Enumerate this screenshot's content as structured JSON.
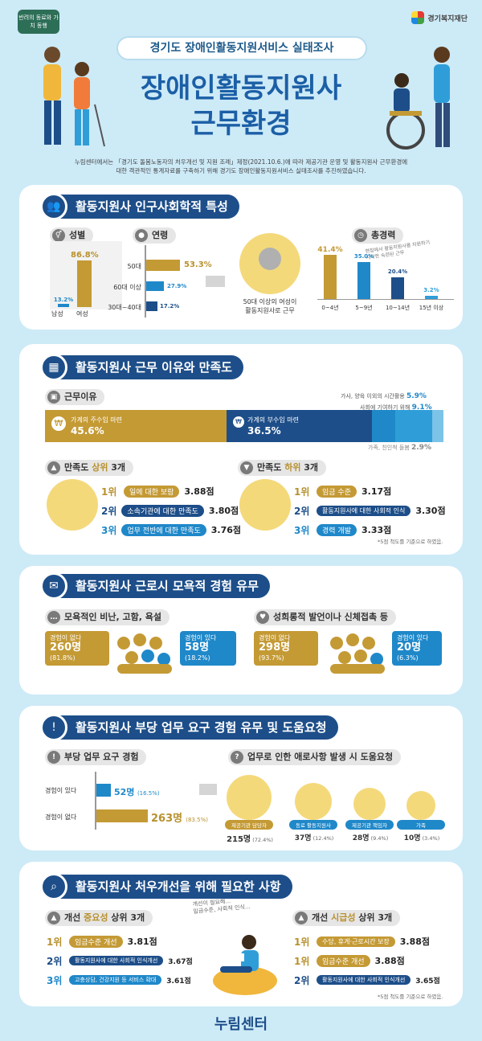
{
  "header": {
    "logo_left": "반려의 동료와 가치 동행",
    "logo_right": "경기복지재단",
    "subtitle": "경기도 장애인활동지원서비스 실태조사",
    "title_line1": "장애인활동지원사",
    "title_line2": "근무환경",
    "intro_line1": "누림센터에서는 「경기도 돌봄노동자의 처우개선 및 지원 조례」제정(2021.10.6.)에 따라 제공기관 운영 및 활동지원사 근무환경에",
    "intro_line2": "대한 객관적인 통계자료를 구축하기 위해 경기도 장애인활동지원서비스 실태조사를 추진하였습니다."
  },
  "sec1": {
    "title": "활동지원사 인구사회학적 특성",
    "gender": {
      "label": "성별",
      "male_label": "남성",
      "male_pct": "13.2%",
      "female_label": "여성",
      "female_pct": "86.8%",
      "male": 13.2,
      "female": 86.8
    },
    "age": {
      "label": "연령",
      "rows": [
        {
          "name": "50대",
          "pct": "53.3%",
          "value": 53.3
        },
        {
          "name": "60대 이상",
          "pct": "27.9%",
          "value": 27.9
        },
        {
          "name": "30대~40대",
          "pct": "17.2%",
          "value": 17.2
        }
      ]
    },
    "age_caption_1": "50대 이상의 여성이",
    "age_caption_2": "활동지원사로 근무",
    "career": {
      "label": "총경력",
      "note_1": "현장에서 활동지원사를 지원하기",
      "note_2": "시작한 숙련된 근무",
      "bars": [
        {
          "name": "0~4년",
          "pct": "41.4%",
          "value": 41.4
        },
        {
          "name": "5~9년",
          "pct": "35.0%",
          "value": 35.0
        },
        {
          "name": "10~14년",
          "pct": "20.4%",
          "value": 20.4
        },
        {
          "name": "15년 이상",
          "pct": "3.2%",
          "value": 3.2
        }
      ]
    }
  },
  "sec2": {
    "title": "활동지원사 근무 이유와 만족도",
    "reason_label": "근무이유",
    "reason_main": {
      "label": "가계의 주수입 마련",
      "pct": "45.6%",
      "value": 45.6
    },
    "reason_second": {
      "label": "가계의 부수입 마련",
      "pct": "36.5%",
      "value": 36.5
    },
    "reason_leisure": {
      "label": "가사, 양육 이외의 시간활용",
      "pct": "5.9%",
      "value": 5.9
    },
    "reason_society": {
      "label": "사회에 기여하기 위해",
      "pct": "9.1%",
      "value": 9.1
    },
    "reason_family": {
      "label": "가족, 친인척 돌봄",
      "pct": "2.9%",
      "value": 2.9
    },
    "top_label_pre": "만족도 ",
    "top_label_hl": "상위",
    "top_label_post": " 3개",
    "top": [
      {
        "rank": "1위",
        "item": "일에 대한 보람",
        "score": "3.88점"
      },
      {
        "rank": "2위",
        "item": "소속기관에 대한 만족도",
        "score": "3.80점"
      },
      {
        "rank": "3위",
        "item": "업무 전반에 대한 만족도",
        "score": "3.76점"
      }
    ],
    "bottom_label_pre": "만족도 ",
    "bottom_label_hl": "하위",
    "bottom_label_post": " 3개",
    "bottom": [
      {
        "rank": "1위",
        "item": "임금 수준",
        "score": "3.17점"
      },
      {
        "rank": "2위",
        "item": "활동지원사에 대한 사회적 인식",
        "score": "3.30점"
      },
      {
        "rank": "3위",
        "item": "경력 개발",
        "score": "3.33점"
      }
    ],
    "note": "*5점 척도를 기준으로 하였음."
  },
  "sec3": {
    "title": "활동지원사 근로시 모욕적 경험 유무",
    "left": {
      "label": "모욕적인 비난, 고함, 욕설",
      "no_label": "경험이 없다",
      "no_count": "260명",
      "no_pct": "(81.8%)",
      "yes_label": "경험이 있다",
      "yes_count": "58명",
      "yes_pct": "(18.2%)"
    },
    "right": {
      "label": "성희롱적 발언이나 신체접촉 등",
      "no_label": "경험이 없다",
      "no_count": "298명",
      "no_pct": "(93.7%)",
      "yes_label": "경험이 있다",
      "yes_count": "20명",
      "yes_pct": "(6.3%)"
    }
  },
  "sec4": {
    "title": "활동지원사 부당 업무 요구 경험 유무 및 도움요청",
    "left_label": "부당 업무 요구 경험",
    "yes": {
      "label": "경험이 있다",
      "count": "52명",
      "pct": "(16.5%)",
      "value": 16.5
    },
    "no": {
      "label": "경험이 없다",
      "count": "263명",
      "pct": "(83.5%)",
      "value": 83.5
    },
    "right_label": "업무로 인한 애로사항 발생 시 도움요청",
    "helpers": [
      {
        "name": "제공기관 담당자",
        "count": "215명",
        "pct": "(72.4%)"
      },
      {
        "name": "동료 활동지원사",
        "count": "37명",
        "pct": "(12.4%)"
      },
      {
        "name": "제공기관 책임자",
        "count": "28명",
        "pct": "(9.4%)"
      },
      {
        "name": "가족",
        "count": "10명",
        "pct": "(3.4%)"
      }
    ]
  },
  "sec5": {
    "title": "활동지원사 처우개선을 위해 필요한 사항",
    "left_label_pre": "개선 ",
    "left_label_hl": "중요성",
    "left_label_post": " 상위 3개",
    "left": [
      {
        "rank": "1위",
        "item": "임금수준 개선",
        "score": "3.81점"
      },
      {
        "rank": "2위",
        "item": "활동지원사에 대한 사회적 인식개선",
        "score": "3.67점"
      },
      {
        "rank": "3위",
        "item": "고충상담, 건강지원 등 서비스 확대",
        "score": "3.61점"
      }
    ],
    "right_label_pre": "개선 ",
    "right_label_hl": "시급성",
    "right_label_post": " 상위 3개",
    "right": [
      {
        "rank": "1위",
        "item": "수당, 휴게·근로시간 보장",
        "score": "3.88점"
      },
      {
        "rank": "1위",
        "item": "임금수준 개선",
        "score": "3.88점"
      },
      {
        "rank": "2위",
        "item": "활동지원사에 대한 사회적 인식개선",
        "score": "3.65점"
      }
    ],
    "bubble_1": "개선이 필요해...",
    "bubble_2": "임금수준, 사회적 인식...",
    "note": "*5점 척도를 기준으로 하였음."
  },
  "footer": "누림센터",
  "colors": {
    "navy": "#1d4e89",
    "gold": "#c49a35",
    "blue": "#1f88c9",
    "bg": "#cdeaf7"
  }
}
